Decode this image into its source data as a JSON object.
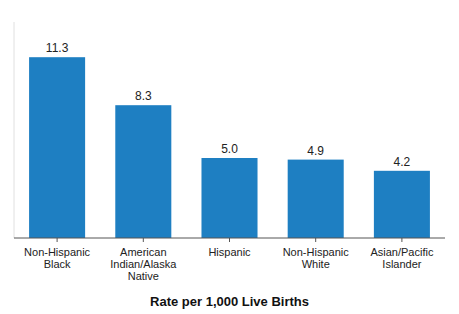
{
  "chart_data": {
    "type": "bar",
    "xlabel": "Rate per 1,000 Live Births",
    "categories": [
      "Non-Hispanic\nBlack",
      "American\nIndian/Alaska\nNative",
      "Hispanic",
      "Non-Hispanic\nWhite",
      "Asian/Pacific\nIslander"
    ],
    "values": [
      11.3,
      8.3,
      5.0,
      4.9,
      4.2
    ],
    "value_labels": [
      "11.3",
      "8.3",
      "5.0",
      "4.9",
      "4.2"
    ],
    "color": "#1e7fc2",
    "ylim": [
      0,
      13.5
    ],
    "data_labels": true,
    "tick_labels": "x",
    "grid": false
  }
}
